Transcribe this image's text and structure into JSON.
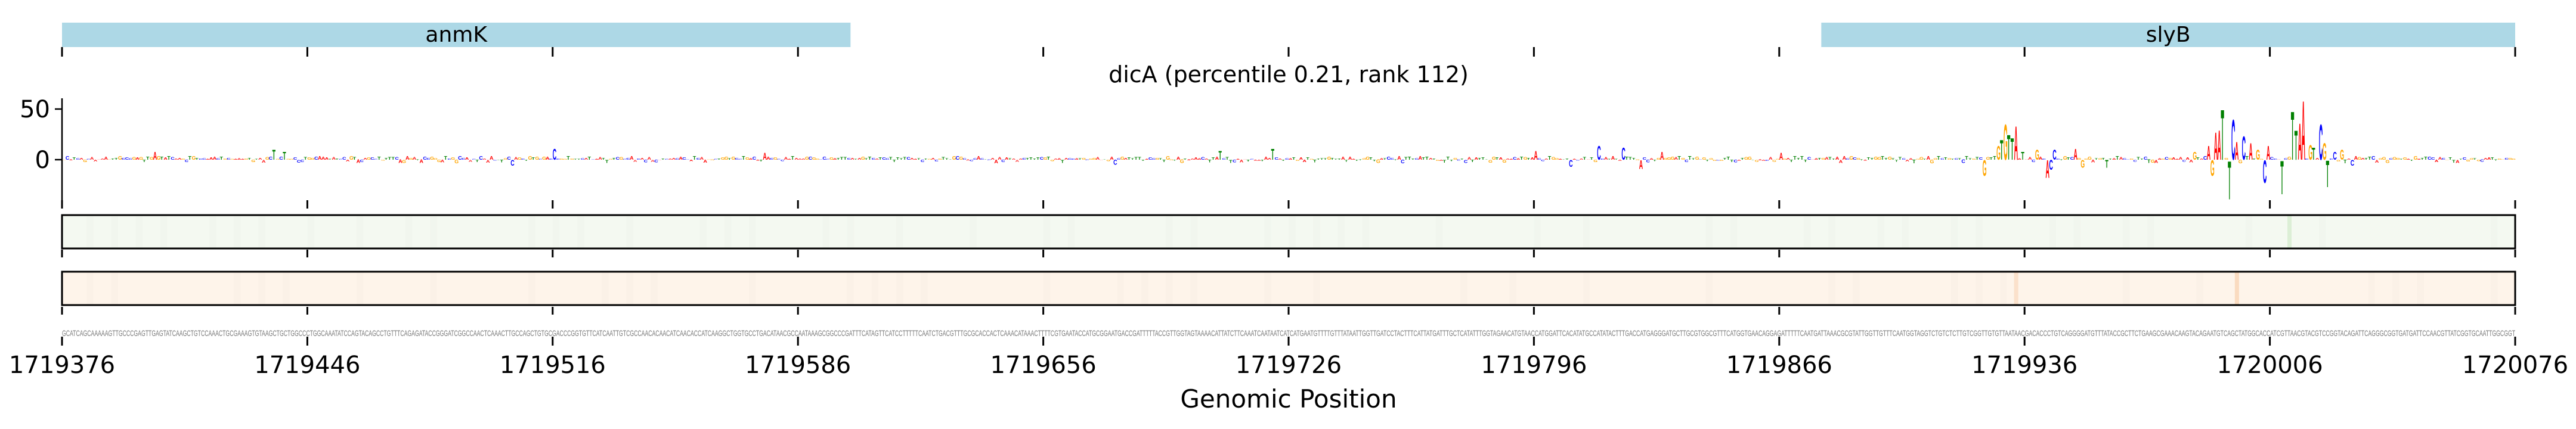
{
  "chart_data": {
    "type": "sequence-logo",
    "title": "dicA (percentile 0.21, rank 112)",
    "xlabel": "Genomic Position",
    "xlim": [
      1719376,
      1720076
    ],
    "x_ticks": [
      "1719376",
      "1719446",
      "1719516",
      "1719586",
      "1719656",
      "1719726",
      "1719796",
      "1719866",
      "1719936",
      "1720006",
      "1720076"
    ],
    "y_ticks": [
      "50",
      "0"
    ],
    "y_tick_values": [
      50,
      0
    ],
    "ylim": [
      -39,
      60
    ],
    "genes": [
      {
        "name": "anmK",
        "start": 1719376,
        "end": 1719601
      },
      {
        "name": "slyB",
        "start": 1719878,
        "end": 1720076
      }
    ],
    "gene_color": "#add8e6",
    "letter_colors": {
      "A": "#ff0000",
      "C": "#0000ff",
      "G": "#ffa500",
      "T": "#008000"
    },
    "sequence": "GCATCAGCAAAAAGTTGCCCGAGTTGAGTATCAAGCTGTCCAAACTGCGAAAGTGTAAGCTGCTGGCCCTGGCAAATATCCAGTACAGCCTGTTTCAGAGATACCGGGATCGGCCAACTCAAACTTGCCAGCTGTGCGACCCGGTGTTCATCAATTGTCGCCAACACAACATCAACACCATCAAGGCTGGTGCCTGACATAACGCCAATAAAGCGGCCCGATTTCATAGTTCATCCTTTTTCAATCTGACGTTTGCGCACCACTCAAACATAAACTTTTCGTGAATACCATGCGGAATGACCGATTTTTACCGTTGGTAGTAAAACATTATCTTCAAATCAATAATCATCATGAATGTTTTGTTTATAATTGGTTGATCCTACTTTCATTATGATTTGCTCATATTTGGTAGAACATGTAACCATGGATTCACATATGCCATATACTTTGACCATGAGGGATGCTTGCGTGGCGTTTCATGGTGAACAGGAGATTTTTCAATGATTAAACGCGTATTGGTTGTTTCAATGGTAGGTCTGTCTCTTGTCGGTTGTGTTAATAACGACACCCTGTCAGGGGATGTTTATACCGCTTCTGAAGCGAAACAAGTACAGAATGTCAGCTATGGCACCATCGTTAACGTACGTCCGGTACAGATTCAGGGCGGTGATGATTCCAACGTTATCGGTGCAATTGGCGGT",
    "peaks": [
      {
        "index": 26,
        "value": 8
      },
      {
        "index": 60,
        "value": 10
      },
      {
        "index": 63,
        "value": 8
      },
      {
        "index": 128,
        "value": -6
      },
      {
        "index": 140,
        "value": 11
      },
      {
        "index": 200,
        "value": 7
      },
      {
        "index": 300,
        "value": -5
      },
      {
        "index": 330,
        "value": 9
      },
      {
        "index": 345,
        "value": 11
      },
      {
        "index": 420,
        "value": 9
      },
      {
        "index": 430,
        "value": -7
      },
      {
        "index": 438,
        "value": 14
      },
      {
        "index": 445,
        "value": 12
      },
      {
        "index": 450,
        "value": -9
      },
      {
        "index": 456,
        "value": 8
      },
      {
        "index": 490,
        "value": 7
      },
      {
        "index": 548,
        "value": -16
      },
      {
        "index": 552,
        "value": 14
      },
      {
        "index": 553,
        "value": 20
      },
      {
        "index": 554,
        "value": 36
      },
      {
        "index": 555,
        "value": 25
      },
      {
        "index": 556,
        "value": 22
      },
      {
        "index": 557,
        "value": 34
      },
      {
        "index": 559,
        "value": 8
      },
      {
        "index": 563,
        "value": 10
      },
      {
        "index": 566,
        "value": -18
      },
      {
        "index": 567,
        "value": -10
      },
      {
        "index": 568,
        "value": 10
      },
      {
        "index": 574,
        "value": 11
      },
      {
        "index": 576,
        "value": -8
      },
      {
        "index": 583,
        "value": -8
      },
      {
        "index": 608,
        "value": 8
      },
      {
        "index": 612,
        "value": 14
      },
      {
        "index": 613,
        "value": -16
      },
      {
        "index": 614,
        "value": 28
      },
      {
        "index": 615,
        "value": 30
      },
      {
        "index": 616,
        "value": 51
      },
      {
        "index": 618,
        "value": -39
      },
      {
        "index": 619,
        "value": 41
      },
      {
        "index": 620,
        "value": 18
      },
      {
        "index": 622,
        "value": 24
      },
      {
        "index": 624,
        "value": 17
      },
      {
        "index": 626,
        "value": 10
      },
      {
        "index": 628,
        "value": -23
      },
      {
        "index": 629,
        "value": 14
      },
      {
        "index": 633,
        "value": -34
      },
      {
        "index": 636,
        "value": 49
      },
      {
        "index": 637,
        "value": 30
      },
      {
        "index": 638,
        "value": 37
      },
      {
        "index": 639,
        "value": 60
      },
      {
        "index": 641,
        "value": 15
      },
      {
        "index": 642,
        "value": 12
      },
      {
        "index": 644,
        "value": 36
      },
      {
        "index": 645,
        "value": 17
      },
      {
        "index": 646,
        "value": -27
      },
      {
        "index": 648,
        "value": 8
      },
      {
        "index": 650,
        "value": 10
      },
      {
        "index": 653,
        "value": -6
      }
    ],
    "track1": {
      "color": "#f4f9f1",
      "highlights": [
        {
          "index": 635,
          "color": "#dcefd6"
        }
      ]
    },
    "track2": {
      "color": "#fef4ea",
      "highlights": [
        {
          "index": 557,
          "color": "#fbe1cb"
        },
        {
          "index": 620,
          "color": "#fadbc0"
        }
      ]
    }
  }
}
